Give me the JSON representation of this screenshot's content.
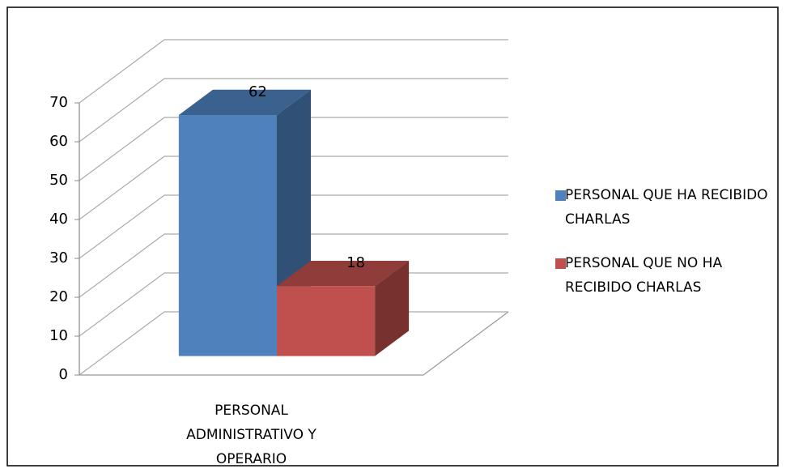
{
  "chart_data": {
    "type": "bar",
    "categories": [
      "PERSONAL ADMINISTRATIVO Y OPERARIO"
    ],
    "series": [
      {
        "name": "PERSONAL QUE HA RECIBIDO CHARLAS",
        "color": "#4f81bd",
        "values": [
          62
        ]
      },
      {
        "name": "PERSONAL QUE NO HA RECIBIDO CHARLAS",
        "color": "#c0504d",
        "values": [
          18
        ]
      }
    ],
    "ylim": [
      0,
      70
    ],
    "yticks": [
      0,
      10,
      20,
      30,
      40,
      50,
      60,
      70
    ],
    "grid": true,
    "legend": "right"
  }
}
